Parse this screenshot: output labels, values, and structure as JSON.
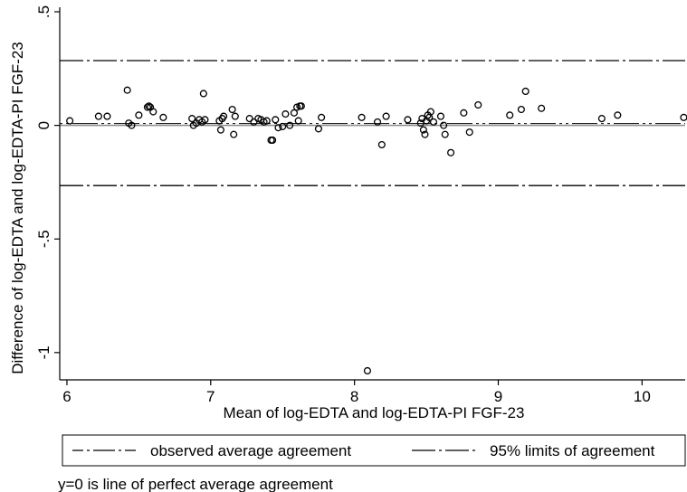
{
  "chart_data": {
    "type": "scatter",
    "xlabel": "Mean of log-EDTA and log-EDTA-PI FGF-23",
    "ylabel": "Difference of log-EDTA and log-EDTA-PI FGF-23",
    "xlim": [
      5.95,
      10.3
    ],
    "ylim": [
      -1.12,
      0.52
    ],
    "x_ticks": [
      6,
      7,
      8,
      9,
      10
    ],
    "x_tick_labels": [
      "6",
      "7",
      "8",
      "9",
      "10"
    ],
    "y_ticks": [
      0.5,
      0,
      -0.5,
      -1
    ],
    "y_tick_labels": [
      ".5",
      "0",
      "-.5",
      "-1"
    ],
    "grid": false,
    "reference_lines": {
      "zero": 0,
      "observed_average_agreement": 0.008,
      "upper_limit_of_agreement": 0.285,
      "lower_limit_of_agreement": -0.265
    },
    "legend": {
      "position": "bottom",
      "entries": [
        "observed average agreement",
        "95% limits of agreement"
      ]
    },
    "note": "y=0 is line of perfect average agreement",
    "points": [
      [
        6.02,
        0.02
      ],
      [
        6.22,
        0.04
      ],
      [
        6.28,
        0.04
      ],
      [
        6.42,
        0.155
      ],
      [
        6.43,
        0.01
      ],
      [
        6.45,
        0.0
      ],
      [
        6.5,
        0.045
      ],
      [
        6.56,
        0.08
      ],
      [
        6.57,
        0.085
      ],
      [
        6.58,
        0.08
      ],
      [
        6.6,
        0.06
      ],
      [
        6.67,
        0.035
      ],
      [
        6.87,
        0.03
      ],
      [
        6.88,
        0.0
      ],
      [
        6.9,
        0.01
      ],
      [
        6.92,
        0.025
      ],
      [
        6.94,
        0.015
      ],
      [
        6.95,
        0.14
      ],
      [
        6.96,
        0.025
      ],
      [
        7.06,
        0.02
      ],
      [
        7.07,
        -0.02
      ],
      [
        7.08,
        0.03
      ],
      [
        7.09,
        0.04
      ],
      [
        7.15,
        0.07
      ],
      [
        7.16,
        -0.04
      ],
      [
        7.17,
        0.04
      ],
      [
        7.27,
        0.03
      ],
      [
        7.3,
        0.015
      ],
      [
        7.33,
        0.03
      ],
      [
        7.35,
        0.025
      ],
      [
        7.37,
        0.015
      ],
      [
        7.39,
        0.02
      ],
      [
        7.42,
        -0.065
      ],
      [
        7.43,
        -0.065
      ],
      [
        7.45,
        0.025
      ],
      [
        7.47,
        -0.01
      ],
      [
        7.5,
        -0.005
      ],
      [
        7.52,
        0.05
      ],
      [
        7.55,
        0.0
      ],
      [
        7.58,
        0.055
      ],
      [
        7.6,
        0.08
      ],
      [
        7.61,
        0.02
      ],
      [
        7.62,
        0.085
      ],
      [
        7.63,
        0.085
      ],
      [
        7.75,
        -0.015
      ],
      [
        7.77,
        0.035
      ],
      [
        8.05,
        0.035
      ],
      [
        8.09,
        -1.08
      ],
      [
        8.16,
        0.015
      ],
      [
        8.19,
        -0.085
      ],
      [
        8.22,
        0.04
      ],
      [
        8.37,
        0.025
      ],
      [
        8.46,
        0.01
      ],
      [
        8.47,
        0.03
      ],
      [
        8.48,
        -0.02
      ],
      [
        8.49,
        -0.04
      ],
      [
        8.5,
        0.02
      ],
      [
        8.51,
        0.045
      ],
      [
        8.52,
        0.035
      ],
      [
        8.53,
        0.06
      ],
      [
        8.55,
        0.015
      ],
      [
        8.6,
        0.04
      ],
      [
        8.62,
        0.0
      ],
      [
        8.63,
        -0.04
      ],
      [
        8.67,
        -0.12
      ],
      [
        8.76,
        0.055
      ],
      [
        8.8,
        -0.03
      ],
      [
        8.86,
        0.09
      ],
      [
        9.08,
        0.045
      ],
      [
        9.16,
        0.07
      ],
      [
        9.19,
        0.15
      ],
      [
        9.3,
        0.075
      ],
      [
        9.72,
        0.03
      ],
      [
        9.83,
        0.045
      ],
      [
        10.29,
        0.035
      ]
    ]
  }
}
